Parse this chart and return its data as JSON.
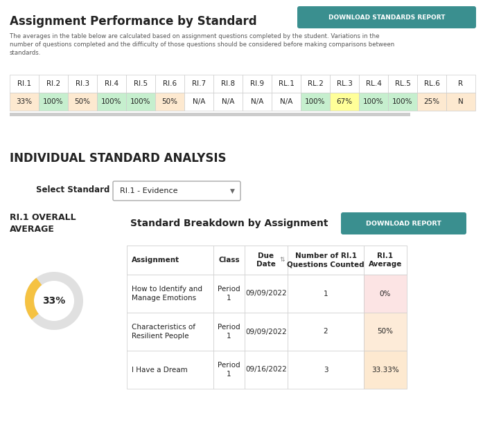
{
  "title": "Assignment Performance by Standard",
  "subtitle": "The averages in the table below are calculated based on assignment questions completed by the student. Variations in the\nnumber of questions completed and the difficulty of those questions should be considered before making comparisons between\nstandards.",
  "download_btn1": "DOWNLOAD STANDARDS REPORT",
  "standards_headers": [
    "RI.1",
    "RI.2",
    "RI.3",
    "RI.4",
    "RI.5",
    "RI.6",
    "RI.7",
    "RI.8",
    "RI.9",
    "RL.1",
    "RL.2",
    "RL.3",
    "RL.4",
    "RL.5",
    "RL.6",
    "R"
  ],
  "standards_values": [
    "33%",
    "100%",
    "50%",
    "100%",
    "100%",
    "50%",
    "N/A",
    "N/A",
    "N/A",
    "N/A",
    "100%",
    "67%",
    "100%",
    "100%",
    "25%",
    "N"
  ],
  "standards_colors": [
    "#fde9d0",
    "#c6efce",
    "#fde9d0",
    "#c6efce",
    "#c6efce",
    "#fde9d0",
    "#ffffff",
    "#ffffff",
    "#ffffff",
    "#ffffff",
    "#c6efce",
    "#ffff99",
    "#c6efce",
    "#c6efce",
    "#fde9d0",
    "#fde9d0"
  ],
  "section2_title": "INDIVIDUAL STANDARD ANALYSIS",
  "select_standard_label": "Select Standard",
  "select_standard_value": "RI.1 - Evidence",
  "overall_label": "RI.1 OVERALL\nAVERAGE",
  "overall_pct": 33,
  "overall_pct_label": "33%",
  "breakdown_title": "Standard Breakdown by Assignment",
  "download_btn2": "DOWNLOAD REPORT",
  "table_headers": [
    "Assignment",
    "Class",
    "Due\nDate",
    "Number of RI.1\nQuestions Counted",
    "RI.1\nAverage"
  ],
  "table_rows": [
    [
      "How to Identify and\nManage Emotions",
      "Period\n1",
      "09/09/2022",
      "1",
      "0%"
    ],
    [
      "Characteristics of\nResilient People",
      "Period\n1",
      "09/09/2022",
      "2",
      "50%"
    ],
    [
      "I Have a Dream",
      "Period\n1",
      "09/16/2022",
      "3",
      "33.33%"
    ]
  ],
  "table_avg_colors": [
    "#fce4e4",
    "#fdebd8",
    "#fde9d0"
  ],
  "bg_color": "#ffffff",
  "teal_btn_color": "#3a8f8f",
  "donut_main_color": "#f5c242",
  "donut_bg_color": "#e0e0e0",
  "scrollbar_color": "#cccccc",
  "border_color": "#cccccc",
  "text_dark": "#222222",
  "text_mid": "#444444",
  "text_light": "#666666"
}
